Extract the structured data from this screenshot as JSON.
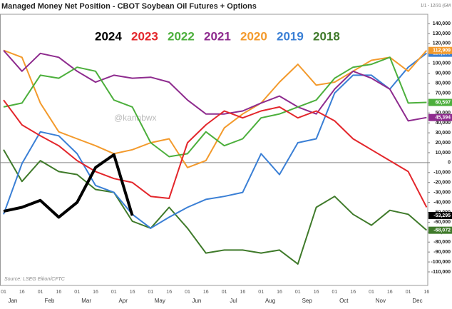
{
  "chart_data": {
    "type": "line",
    "title": "Managed Money Net Position - CBOT Soybean Oil Futures + Options",
    "date_range": "1/1 - 12/31 (GM",
    "watermark": "@kannbwx",
    "source": "Source: LSEG Eikon/CFTC",
    "categories": [
      "01",
      "16",
      "01",
      "16",
      "01",
      "16",
      "01",
      "16",
      "01",
      "16",
      "01",
      "16",
      "01",
      "16",
      "01",
      "16",
      "01",
      "16",
      "01",
      "16",
      "01",
      "16",
      "01",
      "16"
    ],
    "months": [
      "Jan",
      "Feb",
      "Mar",
      "Apr",
      "May",
      "Jun",
      "Jul",
      "Aug",
      "Sep",
      "Oct",
      "Nov",
      "Dec"
    ],
    "series": [
      {
        "name": "2024",
        "color": "#000000",
        "values": [
          -49000,
          -45000,
          -38000,
          -55000,
          -40000,
          -5000,
          8000,
          -53295,
          null,
          null,
          null,
          null,
          null,
          null,
          null,
          null,
          null,
          null,
          null,
          null,
          null,
          null,
          null,
          null
        ],
        "value_labels": [
          null,
          null,
          null,
          null,
          null,
          null,
          null,
          "-53,295",
          null,
          null,
          null,
          null,
          null,
          null,
          null,
          null,
          null,
          null,
          null,
          null,
          null,
          null,
          null,
          null
        ]
      },
      {
        "name": "2023",
        "color": "#e3262b",
        "values": [
          63000,
          38000,
          27000,
          17000,
          2000,
          -9000,
          -16000,
          -20000,
          -34000,
          -36000,
          20000,
          38000,
          52000,
          45000,
          52000,
          56000,
          45000,
          52000,
          42000,
          24000,
          13000,
          2000,
          -9000,
          -45000
        ]
      },
      {
        "name": "2022",
        "color": "#4caf3c",
        "values": [
          56000,
          60000,
          88000,
          85000,
          96000,
          92000,
          63000,
          56000,
          20000,
          6000,
          9000,
          31000,
          17000,
          24000,
          45000,
          49000,
          56000,
          63000,
          85000,
          96000,
          99000,
          106000,
          60000,
          60597
        ],
        "value_labels": [
          null,
          null,
          null,
          null,
          null,
          null,
          null,
          null,
          null,
          null,
          null,
          null,
          null,
          null,
          null,
          null,
          null,
          null,
          null,
          null,
          null,
          null,
          null,
          "60,597"
        ]
      },
      {
        "name": "2021",
        "color": "#8e2b8e",
        "values": [
          113000,
          92000,
          110000,
          106000,
          92000,
          81000,
          88000,
          85000,
          86000,
          81000,
          63000,
          49000,
          49000,
          52000,
          60000,
          67000,
          56000,
          49000,
          74000,
          92000,
          85000,
          74000,
          42000,
          45394
        ],
        "value_labels": [
          null,
          null,
          null,
          null,
          null,
          null,
          null,
          null,
          null,
          null,
          null,
          null,
          null,
          null,
          null,
          null,
          null,
          null,
          null,
          null,
          null,
          null,
          null,
          "45,394"
        ]
      },
      {
        "name": "2020",
        "color": "#f39a2c",
        "values": [
          113000,
          106000,
          60000,
          31000,
          24000,
          17000,
          9000,
          13000,
          20000,
          24000,
          -5000,
          2000,
          35000,
          49000,
          60000,
          81000,
          99000,
          78000,
          81000,
          92000,
          103000,
          106000,
          92000,
          112909
        ],
        "value_labels": [
          null,
          null,
          null,
          null,
          null,
          null,
          null,
          null,
          null,
          null,
          null,
          null,
          null,
          null,
          null,
          null,
          null,
          null,
          null,
          null,
          null,
          null,
          null,
          "112,909"
        ]
      },
      {
        "name": "2019",
        "color": "#3a7fd5",
        "values": [
          -52000,
          -1000,
          31000,
          27000,
          9000,
          -23000,
          -30000,
          -52000,
          -66000,
          -55000,
          -45000,
          -37000,
          -34000,
          -30000,
          9000,
          -12000,
          20000,
          24000,
          70000,
          88000,
          88000,
          74000,
          96000,
          110100
        ],
        "value_labels": [
          null,
          null,
          null,
          null,
          null,
          null,
          null,
          null,
          null,
          null,
          null,
          null,
          null,
          null,
          null,
          null,
          null,
          null,
          null,
          null,
          null,
          null,
          null,
          "110,100"
        ]
      },
      {
        "name": "2018",
        "color": "#3f7a2a",
        "values": [
          13000,
          -19000,
          2000,
          -9000,
          -12000,
          -27000,
          -30000,
          -59000,
          -66000,
          -45000,
          -66000,
          -91000,
          -88000,
          -88000,
          -91000,
          -88000,
          -102000,
          -45000,
          -34000,
          -52000,
          -63000,
          -48000,
          -52000,
          -68072
        ],
        "value_labels": [
          null,
          null,
          null,
          null,
          null,
          null,
          null,
          null,
          null,
          null,
          null,
          null,
          null,
          null,
          null,
          null,
          null,
          null,
          null,
          null,
          null,
          null,
          null,
          "-68,072"
        ]
      }
    ],
    "ylim": [
      -110000,
      140000
    ],
    "yticks": [
      {
        "value": 140000,
        "label": "140,000"
      },
      {
        "value": 130000,
        "label": "130,000"
      },
      {
        "value": 120000,
        "label": "120,000"
      },
      {
        "value": 110000,
        "label": "110,000"
      },
      {
        "value": 100000,
        "label": "100,000"
      },
      {
        "value": 90000,
        "label": "90,000"
      },
      {
        "value": 80000,
        "label": "80,000"
      },
      {
        "value": 70000,
        "label": "70,000"
      },
      {
        "value": 60000,
        "label": "60,000"
      },
      {
        "value": 50000,
        "label": "50,000"
      },
      {
        "value": 40000,
        "label": "40,000"
      },
      {
        "value": 30000,
        "label": "30,000"
      },
      {
        "value": 20000,
        "label": "20,000"
      },
      {
        "value": 10000,
        "label": "10,000"
      },
      0,
      {
        "value": -10000,
        "label": "-10,000"
      },
      {
        "value": -20000,
        "label": "-20,000"
      },
      {
        "value": -30000,
        "label": "-30,000"
      },
      {
        "value": -40000,
        "label": "-40,000"
      },
      {
        "value": -50000,
        "label": "-50,000"
      },
      {
        "value": -60000,
        "label": "-60,000"
      },
      {
        "value": -70000,
        "label": "-70,000"
      },
      {
        "value": -80000,
        "label": "-80,000"
      },
      {
        "value": -90000,
        "label": "-90,000"
      },
      {
        "value": -100000,
        "label": "-100,000"
      },
      {
        "value": -110000,
        "label": "-110,000"
      }
    ],
    "grid": false,
    "zero_line": true
  }
}
